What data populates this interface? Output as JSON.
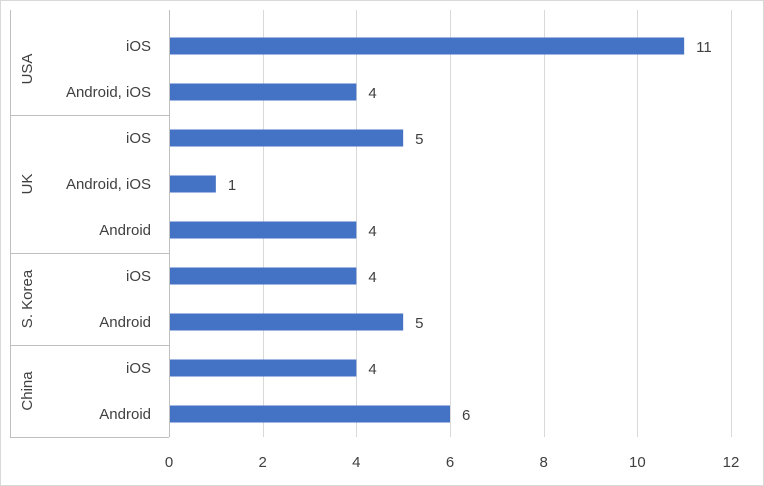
{
  "chart_data": {
    "type": "bar",
    "orientation": "horizontal",
    "title": "",
    "xlabel": "",
    "ylabel": "",
    "xlim": [
      0,
      12
    ],
    "x_ticks": [
      0,
      2,
      4,
      6,
      8,
      10,
      12
    ],
    "grid": "vertical",
    "show_data_labels": true,
    "groups": [
      {
        "name": "USA",
        "items": [
          {
            "label": "iOS",
            "value": 11
          },
          {
            "label": "Android, iOS",
            "value": 4
          }
        ]
      },
      {
        "name": "UK",
        "items": [
          {
            "label": "iOS",
            "value": 5
          },
          {
            "label": "Android, iOS",
            "value": 1
          },
          {
            "label": "Android",
            "value": 4
          }
        ]
      },
      {
        "name": "S. Korea",
        "items": [
          {
            "label": "iOS",
            "value": 4
          },
          {
            "label": "Android",
            "value": 5
          }
        ]
      },
      {
        "name": "China",
        "items": [
          {
            "label": "iOS",
            "value": 4
          },
          {
            "label": "Android",
            "value": 6
          }
        ]
      }
    ]
  },
  "colors": {
    "bar": "#4472C4",
    "grid": "#D9D9D9",
    "axis": "#BFBFBF",
    "text": "#404040",
    "frame": "#D9D9D9"
  }
}
